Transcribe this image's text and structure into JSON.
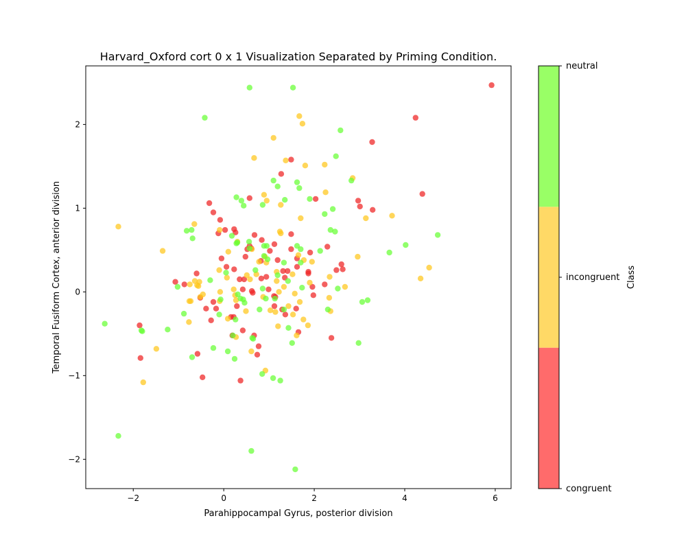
{
  "chart_data": {
    "type": "scatter",
    "title": "Harvard_Oxford cort 0 x 1 Visualization Separated by Priming Condition.",
    "xlabel": "Parahippocampal Gyrus, posterior division",
    "ylabel": "Temporal Fusiform Cortex, anterior division",
    "xlim": [
      -3.05,
      6.35
    ],
    "ylim": [
      -2.35,
      2.7
    ],
    "x_ticks": [
      -2,
      0,
      2,
      4,
      6
    ],
    "y_ticks": [
      -2,
      -1,
      0,
      1,
      2
    ],
    "x_tick_labels": [
      "−2",
      "0",
      "2",
      "4",
      "6"
    ],
    "y_tick_labels": [
      "−2",
      "−1",
      "0",
      "1",
      "2"
    ],
    "grid": false,
    "colorbar": {
      "label": "Class",
      "classes": [
        {
          "name": "congruent",
          "color": "#ff6b6b"
        },
        {
          "name": "incongruent",
          "color": "#ffd966"
        },
        {
          "name": "neutral",
          "color": "#99ff66"
        }
      ]
    },
    "series": [
      {
        "class": "congruent",
        "color": "#ee2222",
        "points": [
          [
            5.92,
            2.47
          ],
          [
            4.24,
            2.08
          ],
          [
            3.28,
            1.79
          ],
          [
            4.39,
            1.17
          ],
          [
            2.97,
            1.09
          ],
          [
            3.01,
            1.02
          ],
          [
            3.29,
            0.98
          ],
          [
            2.03,
            1.11
          ],
          [
            1.49,
            1.58
          ],
          [
            1.27,
            1.41
          ],
          [
            0.57,
            1.12
          ],
          [
            -0.32,
            1.06
          ],
          [
            -0.23,
            0.95
          ],
          [
            -0.08,
            0.86
          ],
          [
            0.03,
            0.74
          ],
          [
            0.23,
            0.75
          ],
          [
            0.26,
            0.71
          ],
          [
            -0.12,
            0.7
          ],
          [
            0.57,
            0.55
          ],
          [
            0.61,
            0.52
          ],
          [
            0.68,
            0.68
          ],
          [
            0.82,
            0.37
          ],
          [
            0.84,
            0.62
          ],
          [
            1.02,
            0.49
          ],
          [
            1.12,
            0.57
          ],
          [
            1.19,
            0.38
          ],
          [
            1.49,
            0.51
          ],
          [
            1.49,
            0.69
          ],
          [
            1.62,
            0.4
          ],
          [
            1.91,
            0.47
          ],
          [
            2.29,
            0.54
          ],
          [
            2.6,
            0.33
          ],
          [
            2.63,
            0.27
          ],
          [
            2.49,
            0.26
          ],
          [
            -0.05,
            0.4
          ],
          [
            0.06,
            0.3
          ],
          [
            0.23,
            0.27
          ],
          [
            0.48,
            0.42
          ],
          [
            0.52,
            0.51
          ],
          [
            0.35,
            0.15
          ],
          [
            0.45,
            0.15
          ],
          [
            0.62,
            0.01
          ],
          [
            0.83,
            0.16
          ],
          [
            0.94,
            0.18
          ],
          [
            0.99,
            0.03
          ],
          [
            1.11,
            -0.05
          ],
          [
            1.14,
            -0.06
          ],
          [
            1.31,
            0.25
          ],
          [
            1.35,
            0.17
          ],
          [
            1.41,
            0.25
          ],
          [
            1.62,
            0.3
          ],
          [
            1.87,
            0.22
          ],
          [
            1.87,
            0.24
          ],
          [
            1.96,
            0.06
          ],
          [
            1.98,
            -0.04
          ],
          [
            2.23,
            0.09
          ],
          [
            -0.6,
            0.22
          ],
          [
            -0.87,
            0.09
          ],
          [
            -1.07,
            0.12
          ],
          [
            -0.52,
            -0.07
          ],
          [
            -0.39,
            -0.2
          ],
          [
            -0.23,
            -0.12
          ],
          [
            -0.17,
            -0.2
          ],
          [
            -0.28,
            -0.34
          ],
          [
            0.16,
            -0.3
          ],
          [
            0.22,
            -0.3
          ],
          [
            0.29,
            -0.17
          ],
          [
            0.42,
            0.03
          ],
          [
            0.64,
            -0.01
          ],
          [
            1.12,
            -0.17
          ],
          [
            1.29,
            -0.21
          ],
          [
            1.36,
            -0.27
          ],
          [
            1.6,
            -0.2
          ],
          [
            1.65,
            -0.48
          ],
          [
            -1.86,
            -0.4
          ],
          [
            -1.84,
            -0.79
          ],
          [
            -0.58,
            -0.74
          ],
          [
            -0.47,
            -1.02
          ],
          [
            0.19,
            -0.52
          ],
          [
            0.37,
            -1.06
          ],
          [
            0.42,
            -0.46
          ],
          [
            0.67,
            -0.52
          ],
          [
            0.74,
            -0.75
          ],
          [
            0.77,
            -0.65
          ],
          [
            2.38,
            -0.55
          ]
        ]
      },
      {
        "class": "incongruent",
        "color": "#ffc61a",
        "points": [
          [
            1.67,
            2.1
          ],
          [
            1.74,
            2.01
          ],
          [
            1.1,
            1.84
          ],
          [
            1.37,
            1.57
          ],
          [
            1.8,
            1.51
          ],
          [
            2.23,
            1.52
          ],
          [
            2.85,
            1.36
          ],
          [
            0.67,
            1.6
          ],
          [
            2.25,
            1.19
          ],
          [
            0.89,
            1.16
          ],
          [
            0.95,
            1.09
          ],
          [
            1.26,
            1.04
          ],
          [
            1.7,
            0.88
          ],
          [
            3.14,
            0.88
          ],
          [
            3.72,
            0.91
          ],
          [
            -2.33,
            0.78
          ],
          [
            -0.65,
            0.81
          ],
          [
            -1.35,
            0.49
          ],
          [
            -0.09,
            0.74
          ],
          [
            0.1,
            0.48
          ],
          [
            0.3,
            0.6
          ],
          [
            0.62,
            0.51
          ],
          [
            0.78,
            0.36
          ],
          [
            1.17,
            0.24
          ],
          [
            1.24,
            0.72
          ],
          [
            1.26,
            0.7
          ],
          [
            1.65,
            0.44
          ],
          [
            1.77,
            0.38
          ],
          [
            1.95,
            0.36
          ],
          [
            2.96,
            0.42
          ],
          [
            4.54,
            0.29
          ],
          [
            4.35,
            0.16
          ],
          [
            2.68,
            0.06
          ],
          [
            2.34,
            0.18
          ],
          [
            1.9,
            0.11
          ],
          [
            -0.75,
            0.09
          ],
          [
            -0.64,
            0.13
          ],
          [
            -0.59,
            0.08
          ],
          [
            -0.56,
            0.07
          ],
          [
            -0.54,
            0.12
          ],
          [
            -0.46,
            -0.03
          ],
          [
            -0.52,
            -0.06
          ],
          [
            -0.1,
            0.26
          ],
          [
            0.07,
            0.17
          ],
          [
            0.22,
            0.03
          ],
          [
            0.25,
            -0.04
          ],
          [
            0.27,
            -0.1
          ],
          [
            0.51,
            0.2
          ],
          [
            0.58,
            0.15
          ],
          [
            0.72,
            0.21
          ],
          [
            0.87,
            -0.06
          ],
          [
            0.91,
            0.42
          ],
          [
            0.94,
            0.35
          ],
          [
            1.17,
            0.13
          ],
          [
            1.22,
            0.0
          ],
          [
            1.33,
            0.06
          ],
          [
            1.43,
            -0.17
          ],
          [
            1.52,
            0.21
          ],
          [
            1.57,
            -0.02
          ],
          [
            1.68,
            -0.12
          ],
          [
            -0.76,
            -0.11
          ],
          [
            -0.73,
            -0.11
          ],
          [
            -0.77,
            -0.36
          ],
          [
            -0.09,
            -0.11
          ],
          [
            0.09,
            -0.32
          ],
          [
            0.27,
            -0.54
          ],
          [
            0.49,
            -0.23
          ],
          [
            1.03,
            -0.22
          ],
          [
            1.14,
            -0.24
          ],
          [
            1.2,
            -0.41
          ],
          [
            1.53,
            -0.27
          ],
          [
            1.76,
            -0.33
          ],
          [
            1.86,
            -0.4
          ],
          [
            1.61,
            -0.52
          ],
          [
            2.33,
            -0.07
          ],
          [
            2.36,
            -0.23
          ],
          [
            -1.49,
            -0.68
          ],
          [
            -1.78,
            -1.08
          ],
          [
            0.61,
            -0.71
          ],
          [
            0.92,
            -0.94
          ],
          [
            -0.08,
            0.0
          ]
        ]
      },
      {
        "class": "neutral",
        "color": "#66ff33",
        "points": [
          [
            0.57,
            2.44
          ],
          [
            1.53,
            2.44
          ],
          [
            -0.42,
            2.08
          ],
          [
            2.58,
            1.93
          ],
          [
            2.48,
            1.62
          ],
          [
            1.1,
            1.33
          ],
          [
            1.19,
            1.26
          ],
          [
            1.62,
            1.31
          ],
          [
            1.67,
            1.24
          ],
          [
            1.35,
            1.1
          ],
          [
            1.9,
            1.11
          ],
          [
            0.28,
            1.13
          ],
          [
            0.39,
            1.09
          ],
          [
            0.44,
            1.03
          ],
          [
            0.86,
            1.04
          ],
          [
            2.41,
            0.99
          ],
          [
            2.23,
            0.93
          ],
          [
            2.36,
            0.74
          ],
          [
            2.46,
            0.72
          ],
          [
            2.82,
            1.33
          ],
          [
            -0.82,
            0.73
          ],
          [
            -0.71,
            0.74
          ],
          [
            -0.69,
            0.64
          ],
          [
            0.18,
            0.67
          ],
          [
            0.3,
            0.59
          ],
          [
            0.28,
            0.58
          ],
          [
            0.56,
            0.6
          ],
          [
            0.89,
            0.55
          ],
          [
            0.95,
            0.55
          ],
          [
            1.62,
            0.55
          ],
          [
            1.7,
            0.51
          ],
          [
            1.7,
            0.35
          ],
          [
            2.13,
            0.49
          ],
          [
            4.02,
            0.56
          ],
          [
            4.73,
            0.68
          ],
          [
            3.66,
            0.47
          ],
          [
            0.05,
            0.23
          ],
          [
            0.57,
            0.52
          ],
          [
            0.7,
            0.26
          ],
          [
            0.89,
            0.43
          ],
          [
            0.97,
            0.39
          ],
          [
            1.33,
            0.35
          ],
          [
            1.42,
            0.13
          ],
          [
            1.73,
            0.05
          ],
          [
            2.52,
            0.04
          ],
          [
            0.31,
            -0.03
          ],
          [
            0.37,
            -0.08
          ],
          [
            0.43,
            -0.09
          ],
          [
            0.46,
            -0.13
          ],
          [
            0.86,
            0.04
          ],
          [
            0.93,
            -0.08
          ],
          [
            1.19,
            0.2
          ],
          [
            1.13,
            -0.08
          ],
          [
            1.33,
            -0.21
          ],
          [
            1.43,
            -0.43
          ],
          [
            1.51,
            -0.61
          ],
          [
            3.06,
            -0.12
          ],
          [
            3.18,
            -0.1
          ],
          [
            2.3,
            -0.21
          ],
          [
            -0.3,
            0.14
          ],
          [
            -1.02,
            0.06
          ],
          [
            -0.07,
            -0.09
          ],
          [
            -0.1,
            -0.27
          ],
          [
            -0.88,
            -0.26
          ],
          [
            -1.24,
            -0.45
          ],
          [
            -1.82,
            -0.46
          ],
          [
            -1.8,
            -0.47
          ],
          [
            -2.63,
            -0.38
          ],
          [
            -0.7,
            -0.78
          ],
          [
            -0.23,
            -0.67
          ],
          [
            0.09,
            -0.71
          ],
          [
            0.2,
            -0.52
          ],
          [
            0.24,
            -0.8
          ],
          [
            0.26,
            -0.33
          ],
          [
            0.63,
            -0.55
          ],
          [
            0.65,
            -0.56
          ],
          [
            0.79,
            -0.21
          ],
          [
            0.85,
            -0.98
          ],
          [
            1.09,
            -1.03
          ],
          [
            1.25,
            -1.06
          ],
          [
            2.98,
            -0.61
          ],
          [
            -2.33,
            -1.72
          ],
          [
            0.61,
            -1.9
          ],
          [
            1.58,
            -2.12
          ]
        ]
      }
    ]
  }
}
